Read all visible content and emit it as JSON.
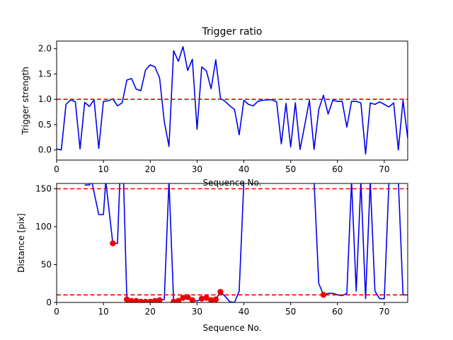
{
  "chart_data": [
    {
      "type": "line",
      "title": "Trigger ratio",
      "xlabel": "Sequence No.",
      "ylabel": "Trigger strength",
      "xlim": [
        0,
        75
      ],
      "ylim": [
        -0.2,
        2.15
      ],
      "xticks": [
        0,
        10,
        20,
        30,
        40,
        50,
        60,
        70
      ],
      "yticks": [
        0.0,
        0.5,
        1.0,
        1.5,
        2.0
      ],
      "ytick_labels": [
        "0.0",
        "0.5",
        "1.0",
        "1.5",
        "2.0"
      ],
      "grid": false,
      "series": [
        {
          "color": "#0000ee",
          "style": "solid",
          "x": [
            0,
            1,
            2,
            3,
            4,
            5,
            6,
            7,
            8,
            9,
            10,
            11,
            12,
            13,
            14,
            15,
            16,
            17,
            18,
            19,
            20,
            21,
            22,
            23,
            24,
            25,
            26,
            27,
            28,
            29,
            30,
            31,
            32,
            33,
            34,
            35,
            36,
            37,
            38,
            39,
            40,
            41,
            42,
            43,
            44,
            45,
            46,
            47,
            48,
            49,
            50,
            51,
            52,
            53,
            54,
            55,
            56,
            57,
            58,
            59,
            60,
            61,
            62,
            63,
            64,
            65,
            66,
            67,
            68,
            69,
            70,
            71,
            72,
            73,
            74,
            75
          ],
          "y": [
            0.02,
            0.0,
            0.9,
            0.99,
            0.95,
            0.02,
            0.94,
            0.86,
            0.99,
            0.03,
            0.96,
            0.97,
            1.01,
            0.87,
            0.93,
            1.38,
            1.41,
            1.2,
            1.17,
            1.58,
            1.68,
            1.64,
            1.42,
            0.56,
            0.07,
            1.96,
            1.75,
            2.04,
            1.57,
            1.79,
            0.41,
            1.64,
            1.56,
            1.21,
            1.78,
            1.02,
            0.96,
            0.87,
            0.8,
            0.3,
            0.98,
            0.9,
            0.87,
            0.96,
            0.98,
            0.99,
            0.99,
            0.95,
            0.12,
            0.92,
            0.06,
            0.93,
            0.01,
            0.49,
            0.98,
            0.01,
            0.8,
            1.08,
            0.71,
            0.98,
            0.96,
            0.96,
            0.45,
            0.96,
            0.96,
            0.93,
            -0.08,
            0.93,
            0.9,
            0.95,
            0.9,
            0.85,
            0.93,
            0.0,
            0.98,
            0.23
          ]
        }
      ],
      "reference_lines": [
        {
          "y": 1.0,
          "color": "#ee0000",
          "style": "dashed"
        }
      ]
    },
    {
      "type": "line",
      "title": "",
      "xlabel": "Sequence No.",
      "ylabel": "Distance [pix]",
      "xlim": [
        0,
        75
      ],
      "ylim": [
        0,
        157
      ],
      "xticks": [
        0,
        10,
        20,
        30,
        40,
        50,
        60,
        70
      ],
      "yticks": [
        0,
        50,
        100,
        150
      ],
      "ytick_labels": [
        "0",
        "50",
        "100",
        "150"
      ],
      "grid": false,
      "series": [
        {
          "color": "#0000ee",
          "style": "solid",
          "x": [
            6,
            7,
            7.5,
            9,
            10,
            10.5,
            12,
            13,
            13.5,
            14.3,
            15,
            16,
            17,
            18,
            19,
            20,
            21,
            22,
            23,
            24,
            25,
            26,
            27,
            28,
            29,
            30,
            31,
            32,
            33,
            34,
            35,
            36,
            37,
            38,
            39,
            40,
            55,
            56,
            57,
            58,
            59,
            60,
            61,
            62,
            63,
            64,
            65,
            66,
            67,
            68,
            69,
            70,
            71,
            72,
            73,
            74,
            75
          ],
          "y": [
            155,
            155,
            160,
            116,
            116,
            160,
            78,
            78,
            160,
            160,
            4,
            2,
            2,
            1,
            1,
            1,
            2,
            3,
            4,
            160,
            1,
            2,
            6,
            7,
            3,
            2,
            5,
            6,
            3,
            4,
            14,
            8,
            1,
            0,
            15,
            160,
            160,
            25,
            10,
            12,
            12,
            10,
            9,
            12,
            160,
            15,
            160,
            5,
            160,
            15,
            5,
            5,
            160,
            160,
            160,
            10,
            10
          ]
        },
        {
          "type": "scatter",
          "color": "#ee0000",
          "x": [
            12,
            15,
            16,
            17,
            18,
            19,
            20,
            21,
            22,
            25,
            26,
            27,
            28,
            29,
            31,
            32,
            33,
            34,
            35,
            57
          ],
          "y": [
            78,
            4,
            2,
            2,
            1,
            1,
            1,
            2,
            3,
            1,
            2,
            6,
            7,
            3,
            5,
            6,
            3,
            4,
            14,
            10
          ]
        }
      ],
      "reference_lines": [
        {
          "y": 150,
          "color": "#ee0000",
          "style": "dashed"
        },
        {
          "y": 10,
          "color": "#ee0000",
          "style": "dashed"
        }
      ]
    }
  ]
}
